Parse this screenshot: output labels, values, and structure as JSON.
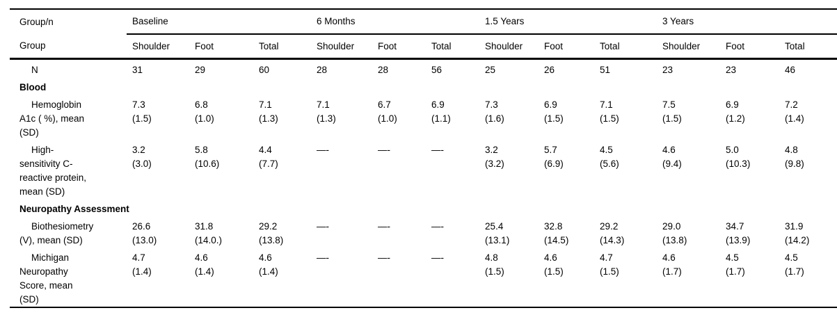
{
  "colors": {
    "background": "#ffffff",
    "text": "#000000",
    "rule": "#000000"
  },
  "table": {
    "header": {
      "group_col": {
        "top": "Group/n",
        "sub": "Group"
      },
      "spanners": [
        {
          "label": "Baseline",
          "sub": [
            "Shoulder",
            "Foot",
            "Total"
          ]
        },
        {
          "label": "6 Months",
          "sub": [
            "Shoulder",
            "Foot",
            "Total"
          ]
        },
        {
          "label": "1.5 Years",
          "sub": [
            "Shoulder",
            "Foot",
            "Total"
          ]
        },
        {
          "label": "3 Years",
          "sub": [
            "Shoulder",
            "Foot",
            "Total"
          ]
        }
      ]
    },
    "rows": [
      {
        "kind": "data",
        "label": "N",
        "cells": [
          "31",
          "29",
          "60",
          "28",
          "28",
          "56",
          "25",
          "26",
          "51",
          "23",
          "23",
          "46"
        ]
      },
      {
        "kind": "section",
        "label": "Blood"
      },
      {
        "kind": "data",
        "label": "Hemoglobin\nA1c ( %), mean\n(SD)",
        "cells": [
          "7.3\n(1.5)",
          "6.8\n(1.0)",
          "7.1\n(1.3)",
          "7.1\n(1.3)",
          "6.7\n(1.0)",
          "6.9\n(1.1)",
          "7.3\n(1.6)",
          "6.9\n(1.5)",
          "7.1\n(1.5)",
          "7.5\n(1.5)",
          "6.9\n(1.2)",
          "7.2\n(1.4)"
        ]
      },
      {
        "kind": "data",
        "label": "High-\nsensitivity C-\nreactive protein,\nmean (SD)",
        "cells": [
          "3.2\n(3.0)",
          "5.8\n(10.6)",
          "4.4\n(7.7)",
          "—-",
          "—-",
          "—-",
          "3.2\n(3.2)",
          "5.7\n(6.9)",
          "4.5\n(5.6)",
          "4.6\n(9.4)",
          "5.0\n(10.3)",
          "4.8\n(9.8)"
        ]
      },
      {
        "kind": "section",
        "label": "Neuropathy Assessment"
      },
      {
        "kind": "data",
        "label": "Biothesiometry\n(V), mean (SD)",
        "cells": [
          "26.6\n(13.0)",
          "31.8\n(14.0.)",
          "29.2\n(13.8)",
          "—-",
          "—-",
          "—-",
          "25.4\n(13.1)",
          "32.8\n(14.5)",
          "29.2\n(14.3)",
          "29.0\n(13.8)",
          "34.7\n(13.9)",
          "31.9\n(14.2)"
        ]
      },
      {
        "kind": "data",
        "label": "Michigan\nNeuropathy\nScore, mean\n(SD)",
        "cells": [
          "4.7\n(1.4)",
          "4.6\n(1.4)",
          "4.6\n(1.4)",
          "—-",
          "—-",
          "—-",
          "4.8\n(1.5)",
          "4.6\n(1.5)",
          "4.7\n(1.5)",
          "4.6\n(1.7)",
          "4.5\n(1.7)",
          "4.5\n(1.7)"
        ]
      }
    ]
  }
}
